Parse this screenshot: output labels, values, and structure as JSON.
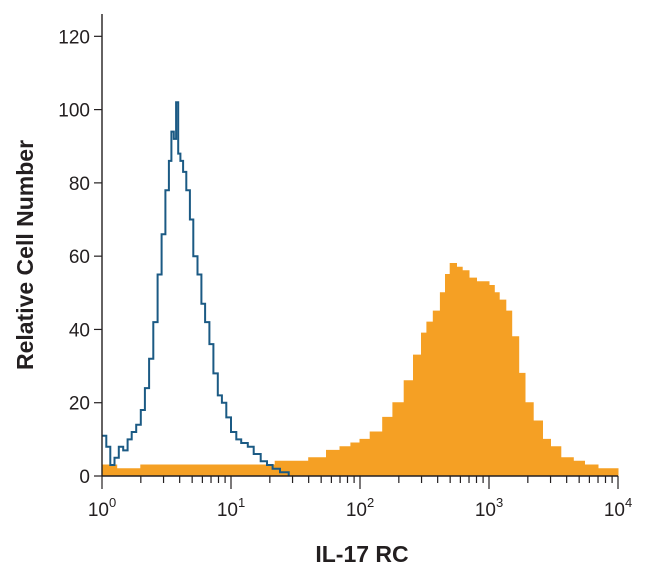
{
  "chart_data": {
    "type": "area",
    "xlabel": "IL-17 RC",
    "ylabel": "Relative Cell Number",
    "x_scale": "log",
    "xlim": [
      1,
      10000
    ],
    "ylim": [
      0,
      125
    ],
    "x_ticks": [
      {
        "base": "10",
        "exp": "0",
        "value": 1
      },
      {
        "base": "10",
        "exp": "1",
        "value": 10
      },
      {
        "base": "10",
        "exp": "2",
        "value": 100
      },
      {
        "base": "10",
        "exp": "3",
        "value": 1000
      },
      {
        "base": "10",
        "exp": "4",
        "value": 10000
      }
    ],
    "y_ticks": [
      "0",
      "20",
      "40",
      "60",
      "80",
      "100",
      "120"
    ],
    "grid": false,
    "colors": {
      "isotype": "#1b5a84",
      "antibody": "#f5a024",
      "axis": "#231f20"
    },
    "series": [
      {
        "style": "outline",
        "color": "#1b5a84",
        "points": [
          [
            1.0,
            11
          ],
          [
            1.08,
            8
          ],
          [
            1.16,
            3
          ],
          [
            1.25,
            5
          ],
          [
            1.35,
            8
          ],
          [
            1.46,
            7
          ],
          [
            1.58,
            10
          ],
          [
            1.7,
            12
          ],
          [
            1.84,
            14
          ],
          [
            2.0,
            18
          ],
          [
            2.15,
            24
          ],
          [
            2.32,
            32
          ],
          [
            2.5,
            42
          ],
          [
            2.7,
            55
          ],
          [
            2.9,
            66
          ],
          [
            3.1,
            78
          ],
          [
            3.3,
            86
          ],
          [
            3.45,
            94
          ],
          [
            3.6,
            92
          ],
          [
            3.75,
            102
          ],
          [
            3.9,
            88
          ],
          [
            4.05,
            86
          ],
          [
            4.25,
            83
          ],
          [
            4.5,
            78
          ],
          [
            4.8,
            70
          ],
          [
            5.1,
            60
          ],
          [
            5.5,
            55
          ],
          [
            5.9,
            47
          ],
          [
            6.3,
            42
          ],
          [
            6.8,
            36
          ],
          [
            7.3,
            28
          ],
          [
            7.9,
            22
          ],
          [
            8.5,
            20
          ],
          [
            9.2,
            16
          ],
          [
            10.0,
            12
          ],
          [
            11.0,
            10
          ],
          [
            12.0,
            9
          ],
          [
            13.5,
            8
          ],
          [
            15.0,
            6
          ],
          [
            17.0,
            4
          ],
          [
            19.0,
            3
          ],
          [
            21.0,
            2
          ],
          [
            24.0,
            1
          ],
          [
            28.0,
            0
          ]
        ]
      },
      {
        "style": "filled",
        "color": "#f5a024",
        "points": [
          [
            1.0,
            3
          ],
          [
            1.3,
            2
          ],
          [
            1.6,
            2
          ],
          [
            2.0,
            3
          ],
          [
            2.5,
            3
          ],
          [
            3.0,
            3
          ],
          [
            4.0,
            3
          ],
          [
            5.0,
            3
          ],
          [
            6.0,
            3
          ],
          [
            8.0,
            3
          ],
          [
            10.0,
            3
          ],
          [
            13.0,
            3
          ],
          [
            17.0,
            3
          ],
          [
            22.0,
            4
          ],
          [
            30.0,
            4
          ],
          [
            40.0,
            5
          ],
          [
            55.0,
            7
          ],
          [
            70.0,
            8
          ],
          [
            85.0,
            9
          ],
          [
            100.0,
            10
          ],
          [
            120.0,
            12
          ],
          [
            150.0,
            16
          ],
          [
            180.0,
            20
          ],
          [
            220.0,
            26
          ],
          [
            260.0,
            33
          ],
          [
            300.0,
            39
          ],
          [
            330.0,
            42
          ],
          [
            370.0,
            45
          ],
          [
            420.0,
            50
          ],
          [
            460.0,
            55
          ],
          [
            500.0,
            58
          ],
          [
            560.0,
            57
          ],
          [
            620.0,
            56
          ],
          [
            700.0,
            54
          ],
          [
            800.0,
            53
          ],
          [
            900.0,
            53
          ],
          [
            1000.0,
            52
          ],
          [
            1100.0,
            50
          ],
          [
            1200.0,
            48
          ],
          [
            1350.0,
            45
          ],
          [
            1500.0,
            38
          ],
          [
            1700.0,
            28
          ],
          [
            1900.0,
            20
          ],
          [
            2200.0,
            15
          ],
          [
            2600.0,
            10
          ],
          [
            3000.0,
            8
          ],
          [
            3600.0,
            5
          ],
          [
            4500.0,
            4
          ],
          [
            5500.0,
            3
          ],
          [
            7000.0,
            2
          ],
          [
            8500.0,
            2
          ],
          [
            10000.0,
            2
          ]
        ]
      }
    ]
  }
}
